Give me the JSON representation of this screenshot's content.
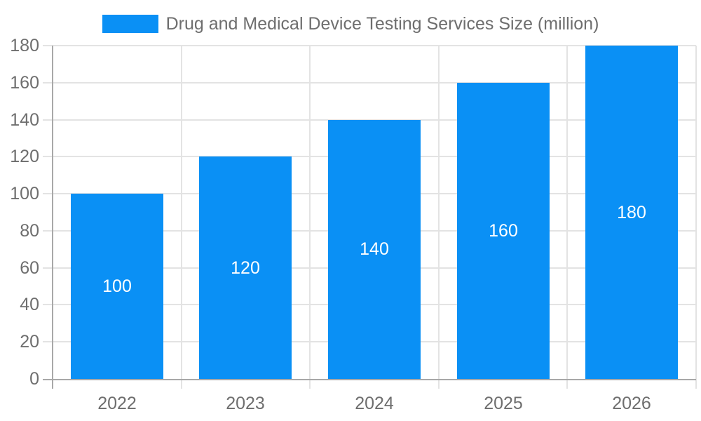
{
  "legend": {
    "label": "Drug and Medical Device Testing Services Size (million)"
  },
  "chart_data": {
    "type": "bar",
    "title": "Drug and Medical Device Testing Services Size (million)",
    "categories": [
      "2022",
      "2023",
      "2024",
      "2025",
      "2026"
    ],
    "values": [
      100,
      120,
      140,
      160,
      180
    ],
    "data_labels": [
      "100",
      "120",
      "140",
      "160",
      "180"
    ],
    "xlabel": "",
    "ylabel": "",
    "ylim": [
      0,
      180
    ],
    "ytick_step": 20,
    "yticks": [
      0,
      20,
      40,
      60,
      80,
      100,
      120,
      140,
      160,
      180
    ],
    "grid": true,
    "legend_position": "top-center",
    "colors": {
      "bar": "#0a90f5",
      "bar_label": "#ffffff",
      "axis": "#a8a8a8",
      "grid": "#e3e3e3",
      "text": "#6e6e6e",
      "background": "#ffffff"
    }
  }
}
